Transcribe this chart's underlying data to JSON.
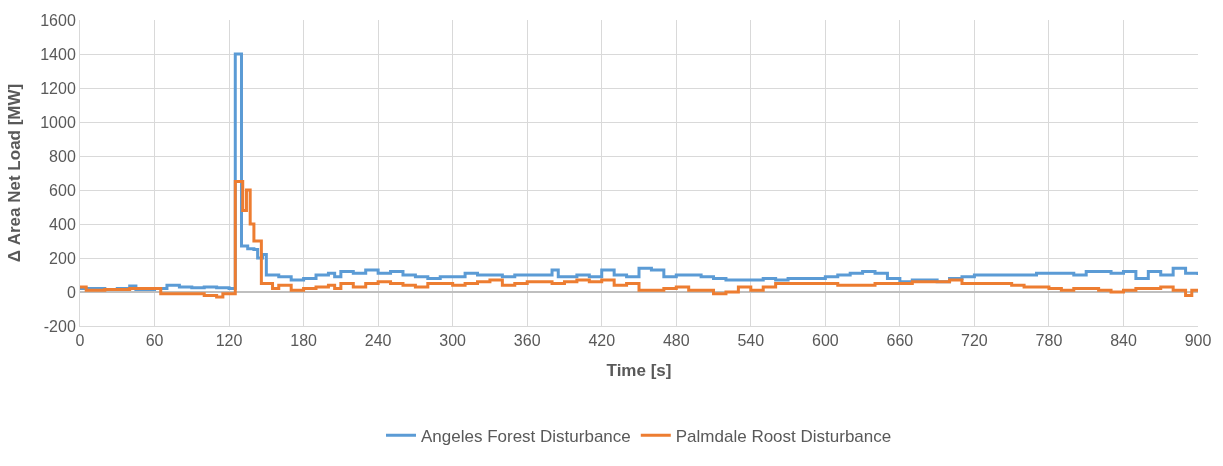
{
  "chart_data": {
    "type": "step",
    "xlabel": "Time [s]",
    "ylabel": "Δ Area Net Load [MW]",
    "xlim": [
      0,
      900
    ],
    "xticks": [
      0,
      60,
      120,
      180,
      240,
      300,
      360,
      420,
      480,
      540,
      600,
      660,
      720,
      780,
      840,
      900
    ],
    "ylim": [
      -200,
      1600
    ],
    "yticks": [
      -200,
      0,
      200,
      400,
      600,
      800,
      1000,
      1200,
      1400,
      1600
    ],
    "grid": true,
    "legend": "bottom",
    "line_style": "solid",
    "marker": "none",
    "series": [
      {
        "name": "Angeles Forest Disturbance",
        "color": "#5b9bd5",
        "x": [
          0,
          10,
          20,
          30,
          40,
          45,
          60,
          70,
          80,
          90,
          100,
          110,
          120,
          124,
          125,
          128,
          130,
          135,
          140,
          143,
          147,
          150,
          160,
          170,
          180,
          190,
          200,
          205,
          210,
          220,
          230,
          240,
          250,
          260,
          270,
          280,
          290,
          300,
          310,
          320,
          330,
          340,
          350,
          360,
          370,
          380,
          385,
          400,
          410,
          420,
          430,
          440,
          450,
          460,
          470,
          480,
          490,
          500,
          510,
          520,
          530,
          540,
          550,
          560,
          570,
          580,
          590,
          600,
          610,
          620,
          630,
          640,
          650,
          660,
          670,
          680,
          690,
          700,
          710,
          720,
          730,
          740,
          750,
          760,
          770,
          780,
          790,
          800,
          810,
          820,
          830,
          840,
          850,
          860,
          870,
          880,
          890,
          900
        ],
        "values": [
          20,
          20,
          15,
          20,
          35,
          15,
          20,
          40,
          30,
          25,
          30,
          25,
          20,
          20,
          1400,
          1400,
          270,
          255,
          250,
          200,
          220,
          100,
          90,
          70,
          80,
          100,
          110,
          90,
          120,
          110,
          130,
          110,
          120,
          100,
          90,
          80,
          90,
          90,
          110,
          100,
          100,
          90,
          100,
          100,
          100,
          130,
          90,
          100,
          90,
          130,
          100,
          90,
          140,
          130,
          90,
          100,
          100,
          90,
          80,
          70,
          70,
          70,
          80,
          70,
          80,
          80,
          80,
          90,
          100,
          110,
          120,
          110,
          80,
          60,
          70,
          70,
          60,
          80,
          90,
          100,
          100,
          100,
          100,
          100,
          110,
          110,
          110,
          100,
          120,
          120,
          110,
          120,
          80,
          120,
          100,
          140,
          110,
          100
        ]
      },
      {
        "name": "Palmdale Roost Disturbance",
        "color": "#ed7d31",
        "x": [
          0,
          5,
          20,
          40,
          60,
          65,
          80,
          100,
          110,
          115,
          124,
          125,
          128,
          131,
          134,
          137,
          140,
          144,
          146,
          150,
          155,
          160,
          170,
          180,
          190,
          200,
          205,
          210,
          220,
          230,
          240,
          250,
          260,
          270,
          280,
          290,
          300,
          310,
          320,
          330,
          340,
          350,
          360,
          370,
          380,
          390,
          400,
          410,
          420,
          430,
          440,
          450,
          460,
          470,
          480,
          490,
          500,
          510,
          520,
          530,
          540,
          550,
          560,
          570,
          580,
          590,
          600,
          610,
          620,
          630,
          640,
          650,
          660,
          670,
          680,
          690,
          700,
          710,
          720,
          730,
          740,
          750,
          760,
          770,
          780,
          790,
          800,
          810,
          820,
          830,
          840,
          850,
          860,
          870,
          880,
          890,
          895,
          900
        ],
        "values": [
          30,
          10,
          15,
          20,
          20,
          -10,
          -10,
          -20,
          -30,
          -10,
          -10,
          650,
          650,
          480,
          600,
          400,
          300,
          300,
          50,
          50,
          20,
          40,
          10,
          20,
          30,
          40,
          20,
          50,
          30,
          50,
          60,
          50,
          40,
          30,
          50,
          50,
          40,
          50,
          60,
          70,
          40,
          50,
          60,
          60,
          50,
          60,
          70,
          60,
          70,
          40,
          50,
          10,
          10,
          20,
          30,
          10,
          10,
          -10,
          0,
          30,
          10,
          30,
          50,
          50,
          50,
          50,
          50,
          40,
          40,
          40,
          50,
          50,
          50,
          60,
          60,
          60,
          70,
          50,
          50,
          50,
          50,
          40,
          30,
          30,
          20,
          10,
          20,
          20,
          10,
          0,
          10,
          20,
          20,
          30,
          10,
          -20,
          10,
          10
        ]
      }
    ]
  }
}
